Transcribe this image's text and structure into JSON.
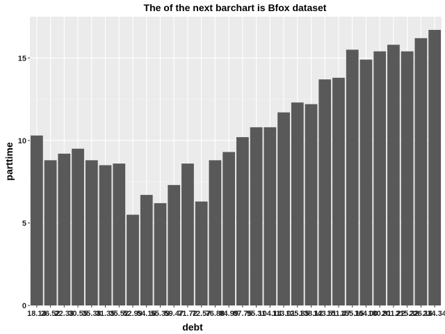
{
  "chart_data": {
    "type": "bar",
    "title": "The of the next barchart is Bfox dataset",
    "xlabel": "debt",
    "ylabel": "parttime",
    "categories": [
      "18.14",
      "26.52",
      "22.33",
      "30.55",
      "35.38",
      "31.35",
      "35.52",
      "52.99",
      "54.16",
      "55.39",
      "59.47",
      "71.72",
      "72.57",
      "76.88",
      "84.99",
      "87.75",
      "95.31",
      "104.14",
      "113.01",
      "125.85",
      "138.12",
      "143.51",
      "151.47",
      "155.15",
      "164.00",
      "180.81",
      "201.22",
      "215.32",
      "226.16",
      "234.34"
    ],
    "values": [
      10.3,
      8.8,
      9.2,
      9.5,
      8.8,
      8.5,
      8.6,
      5.5,
      6.7,
      6.2,
      7.3,
      8.6,
      6.3,
      8.8,
      9.3,
      10.2,
      10.8,
      10.8,
      11.7,
      12.3,
      12.2,
      13.7,
      13.8,
      15.5,
      14.9,
      15.4,
      15.8,
      15.4,
      16.2,
      16.7
    ],
    "ylim": [
      0,
      17.5
    ],
    "yticks": [
      0,
      5,
      10,
      15
    ],
    "grid": true,
    "colors": {
      "bar": "#595959",
      "panel": "#ebebeb",
      "grid_major": "#ffffff",
      "grid_minor": "#f5f5f5"
    }
  }
}
